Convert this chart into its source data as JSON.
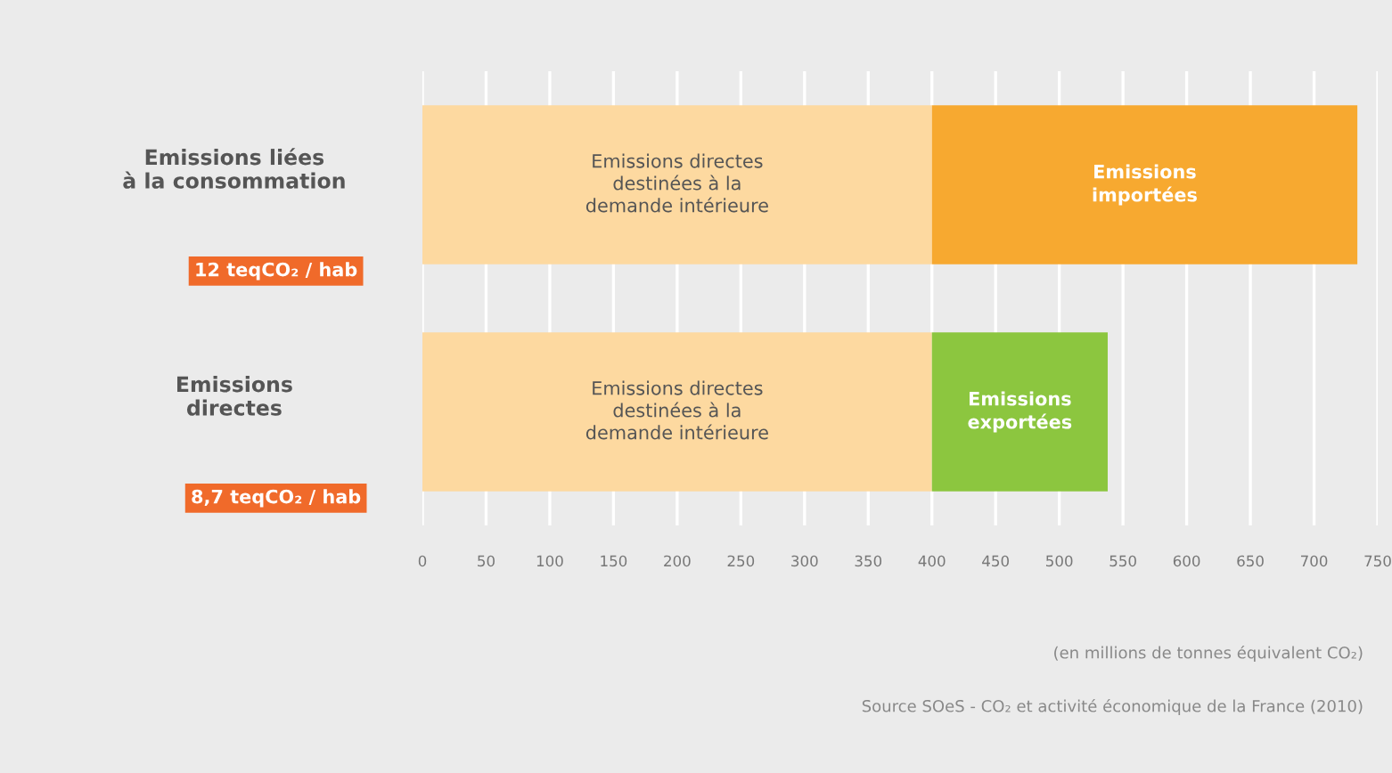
{
  "chart_data": {
    "type": "bar",
    "orientation": "horizontal",
    "stacked": true,
    "categories": [
      "Emissions liées\nà la consommation",
      "Emissions\ndirectes"
    ],
    "series": [
      {
        "colors": [
          "#fdd9a0",
          "#fdd9a0"
        ],
        "values": [
          400,
          400
        ]
      },
      {
        "colors": [
          "#f7a930",
          "#8cc63f"
        ],
        "values": [
          334,
          138
        ]
      }
    ],
    "xlim": [
      0,
      750
    ],
    "xticks": [
      0,
      50,
      100,
      150,
      200,
      250,
      300,
      350,
      400,
      450,
      500,
      550,
      600,
      650,
      700,
      750
    ],
    "grid": "x",
    "annotations": [
      "12 teqCO₂ / hab",
      "8,7 teqCO₂ / hab",
      "Emissions directes\ndestinées à la\ndemande intérieure",
      "Emissions directes\ndestinées à la\ndemande intérieure",
      "Emissions\nimportées",
      "Emissions\nexportées",
      "(en millions de tonnes équivalent CO₂)",
      "Source SOeS - CO₂ et activité économique de la France (2010)"
    ]
  }
}
